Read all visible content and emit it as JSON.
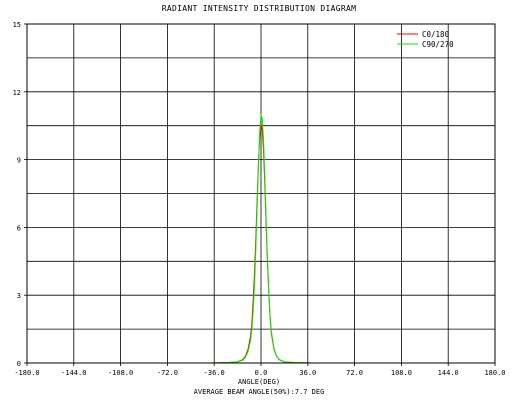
{
  "chart_data": {
    "type": "line",
    "title": "RADIANT INTENSITY DISTRIBUTION DIAGRAM",
    "xlabel": "ANGLE(DEG)",
    "footnote": "AVERAGE BEAM ANGLE(50%):7.7 DEG",
    "xlim": [
      -180,
      180
    ],
    "ylim": [
      0,
      15
    ],
    "x_ticks": [
      -180,
      -144,
      -108,
      -72,
      -36,
      0,
      36,
      72,
      108,
      144,
      180
    ],
    "x_tick_labels": [
      "-180.0",
      "-144.0",
      "-108.0",
      "-72.0",
      "-36.0",
      "0.0",
      "36.0",
      "72.0",
      "108.0",
      "144.0",
      "180.0"
    ],
    "y_ticks": [
      0,
      3,
      6,
      9,
      12,
      15
    ],
    "y_tick_labels": [
      "0",
      "3",
      "6",
      "9",
      "12",
      "15"
    ],
    "grid": true,
    "legend_position": "top-right",
    "series": [
      {
        "name": "C0/180",
        "color": "#ff0000",
        "x": [
          -180,
          -40,
          -25,
          -18,
          -14,
          -12,
          -10,
          -8,
          -7,
          -6,
          -5,
          -4,
          -3,
          -2,
          -1,
          0,
          1,
          2,
          3,
          4,
          5,
          6,
          7,
          8,
          10,
          12,
          14,
          18,
          25,
          40,
          180
        ],
        "y": [
          0,
          0,
          0.02,
          0.05,
          0.15,
          0.3,
          0.6,
          1.2,
          1.8,
          2.8,
          4.0,
          5.5,
          7.2,
          8.8,
          10.0,
          10.6,
          10.3,
          9.3,
          7.8,
          6.0,
          4.4,
          3.1,
          2.0,
          1.3,
          0.6,
          0.3,
          0.15,
          0.05,
          0.02,
          0,
          0
        ]
      },
      {
        "name": "C90/270",
        "color": "#00ee00",
        "x": [
          -180,
          -40,
          -25,
          -18,
          -14,
          -12,
          -10,
          -8,
          -7,
          -6,
          -5,
          -4,
          -3,
          -2,
          -1,
          0,
          1,
          2,
          3,
          4,
          5,
          6,
          7,
          8,
          10,
          12,
          14,
          18,
          25,
          40,
          180
        ],
        "y": [
          0,
          0,
          0.02,
          0.05,
          0.12,
          0.25,
          0.5,
          1.0,
          1.5,
          2.3,
          3.4,
          5.0,
          6.8,
          8.6,
          10.2,
          11.0,
          10.8,
          9.8,
          8.2,
          6.3,
          4.6,
          3.2,
          2.1,
          1.4,
          0.65,
          0.3,
          0.15,
          0.05,
          0.02,
          0,
          0
        ]
      }
    ]
  }
}
